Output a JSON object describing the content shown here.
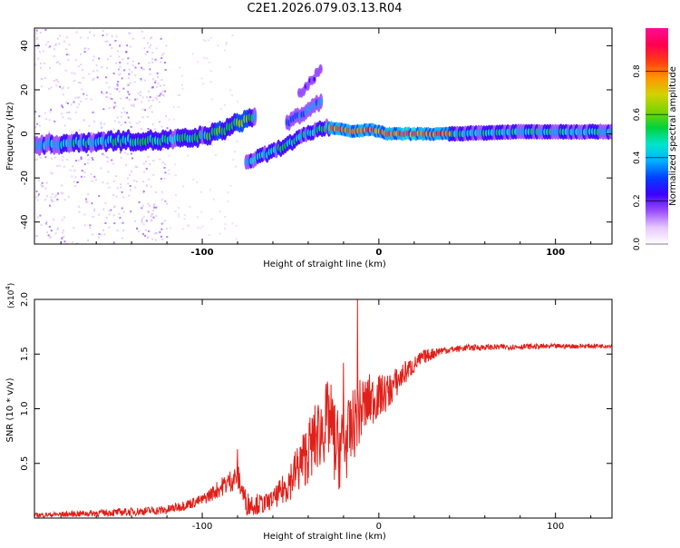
{
  "title": "C2E1.2026.079.03.13.R04",
  "chart_data": [
    {
      "type": "heatmap",
      "name": "spectrogram",
      "xlabel": "Height of straight line (km)",
      "ylabel": "Frequency (Hz)",
      "xlim": [
        -195,
        132
      ],
      "ylim": [
        -50,
        48
      ],
      "xticks": [
        -100,
        0,
        100
      ],
      "xtick_labels": [
        "-100",
        "0",
        "100"
      ],
      "yticks": [
        -40,
        -20,
        0,
        20,
        40
      ],
      "ytick_labels": [
        "-40",
        "-20",
        "0",
        "20",
        "40"
      ],
      "colorbar": {
        "label": "Normalized spectral amplitude",
        "range": [
          0,
          1
        ],
        "ticks": [
          0.0,
          0.2,
          0.4,
          0.6,
          0.8
        ],
        "tick_labels": [
          "0.0",
          "0.2",
          "0.4",
          "0.6",
          "0.8"
        ],
        "colormap": [
          "#ffffff",
          "#e6c8ff",
          "#9a4dff",
          "#3b00ff",
          "#0040ff",
          "#00b0ff",
          "#00e5cc",
          "#00d23c",
          "#7cd400",
          "#d2d200",
          "#ff9600",
          "#ff3c14",
          "#ff0050",
          "#ff0a96"
        ]
      },
      "main_trace": [
        {
          "x": -195,
          "y": -5,
          "a": 0.4
        },
        {
          "x": -170,
          "y": -4,
          "a": 0.45
        },
        {
          "x": -150,
          "y": -3,
          "a": 0.5
        },
        {
          "x": -125,
          "y": -3,
          "a": 0.5
        },
        {
          "x": -105,
          "y": -2,
          "a": 0.48
        },
        {
          "x": -90,
          "y": 1,
          "a": 0.55
        },
        {
          "x": -80,
          "y": 5,
          "a": 0.62
        },
        {
          "x": -70,
          "y": 8,
          "a": 0.45
        }
      ],
      "branch_trace": [
        {
          "x": -75,
          "y": -13,
          "a": 0.45
        },
        {
          "x": -60,
          "y": -8,
          "a": 0.45
        },
        {
          "x": -45,
          "y": -2,
          "a": 0.48
        },
        {
          "x": -35,
          "y": 2,
          "a": 0.45
        },
        {
          "x": -28,
          "y": 3,
          "a": 0.55
        }
      ],
      "upper_trace": [
        {
          "x": -52,
          "y": 5,
          "a": 0.3
        },
        {
          "x": -42,
          "y": 10,
          "a": 0.4
        },
        {
          "x": -32,
          "y": 15,
          "a": 0.35
        }
      ],
      "faint_trace": [
        {
          "x": -45,
          "y": 18,
          "a": 0.2
        },
        {
          "x": -32,
          "y": 30,
          "a": 0.2
        }
      ],
      "bright_segment": [
        {
          "x": -28,
          "y": 3,
          "a": 0.8
        },
        {
          "x": -15,
          "y": 1,
          "a": 0.85
        },
        {
          "x": -5,
          "y": 2,
          "a": 0.8
        },
        {
          "x": 5,
          "y": 0,
          "a": 0.85
        },
        {
          "x": 40,
          "y": 0,
          "a": 0.9
        }
      ],
      "steady_band": [
        {
          "x": 40,
          "y": 0,
          "a": 0.5
        },
        {
          "x": 80,
          "y": 1,
          "a": 0.45
        },
        {
          "x": 132,
          "y": 1,
          "a": 0.45
        }
      ]
    },
    {
      "type": "line",
      "name": "snr",
      "xlabel": "Height of straight line (km)",
      "ylabel": "SNR (10 * v/v)",
      "y_multiplier": "(x10",
      "y_multiplier_exp": "4",
      "y_multiplier_close": ")",
      "xlim": [
        -195,
        132
      ],
      "ylim": [
        0,
        2.0
      ],
      "xticks": [
        -100,
        0,
        100
      ],
      "xtick_labels": [
        "-100",
        "0",
        "100"
      ],
      "yticks": [
        0.5,
        1.0,
        1.5,
        2.0
      ],
      "ytick_labels": [
        "0.5",
        "1.0",
        "1.5",
        "2.0"
      ],
      "color": "#e0201a",
      "envelope": [
        {
          "x": -195,
          "y": 0.02
        },
        {
          "x": -150,
          "y": 0.04
        },
        {
          "x": -120,
          "y": 0.06
        },
        {
          "x": -100,
          "y": 0.15
        },
        {
          "x": -90,
          "y": 0.25
        },
        {
          "x": -80,
          "y": 0.35
        },
        {
          "x": -75,
          "y": 0.1
        },
        {
          "x": -65,
          "y": 0.1
        },
        {
          "x": -55,
          "y": 0.2
        },
        {
          "x": -45,
          "y": 0.4
        },
        {
          "x": -35,
          "y": 0.65
        },
        {
          "x": -28,
          "y": 0.8
        },
        {
          "x": -24,
          "y": 0.5
        },
        {
          "x": -18,
          "y": 0.6
        },
        {
          "x": -12,
          "y": 0.85
        },
        {
          "x": -5,
          "y": 1.0
        },
        {
          "x": 5,
          "y": 1.1
        },
        {
          "x": 15,
          "y": 1.3
        },
        {
          "x": 25,
          "y": 1.45
        },
        {
          "x": 35,
          "y": 1.52
        },
        {
          "x": 50,
          "y": 1.55
        },
        {
          "x": 80,
          "y": 1.56
        },
        {
          "x": 132,
          "y": 1.57
        }
      ],
      "noise": [
        {
          "x": -195,
          "a": 0.02
        },
        {
          "x": -100,
          "a": 0.05
        },
        {
          "x": -80,
          "a": 0.12
        },
        {
          "x": -60,
          "a": 0.08
        },
        {
          "x": -40,
          "a": 0.3
        },
        {
          "x": -25,
          "a": 0.4
        },
        {
          "x": -10,
          "a": 0.3
        },
        {
          "x": 0,
          "a": 0.2
        },
        {
          "x": 20,
          "a": 0.08
        },
        {
          "x": 40,
          "a": 0.03
        },
        {
          "x": 132,
          "a": 0.02
        }
      ],
      "spikes": [
        {
          "x": -80,
          "y": 0.63
        },
        {
          "x": -12,
          "y": 2.0
        },
        {
          "x": -9,
          "y": 1.25
        },
        {
          "x": -20,
          "y": 1.42
        }
      ]
    }
  ]
}
